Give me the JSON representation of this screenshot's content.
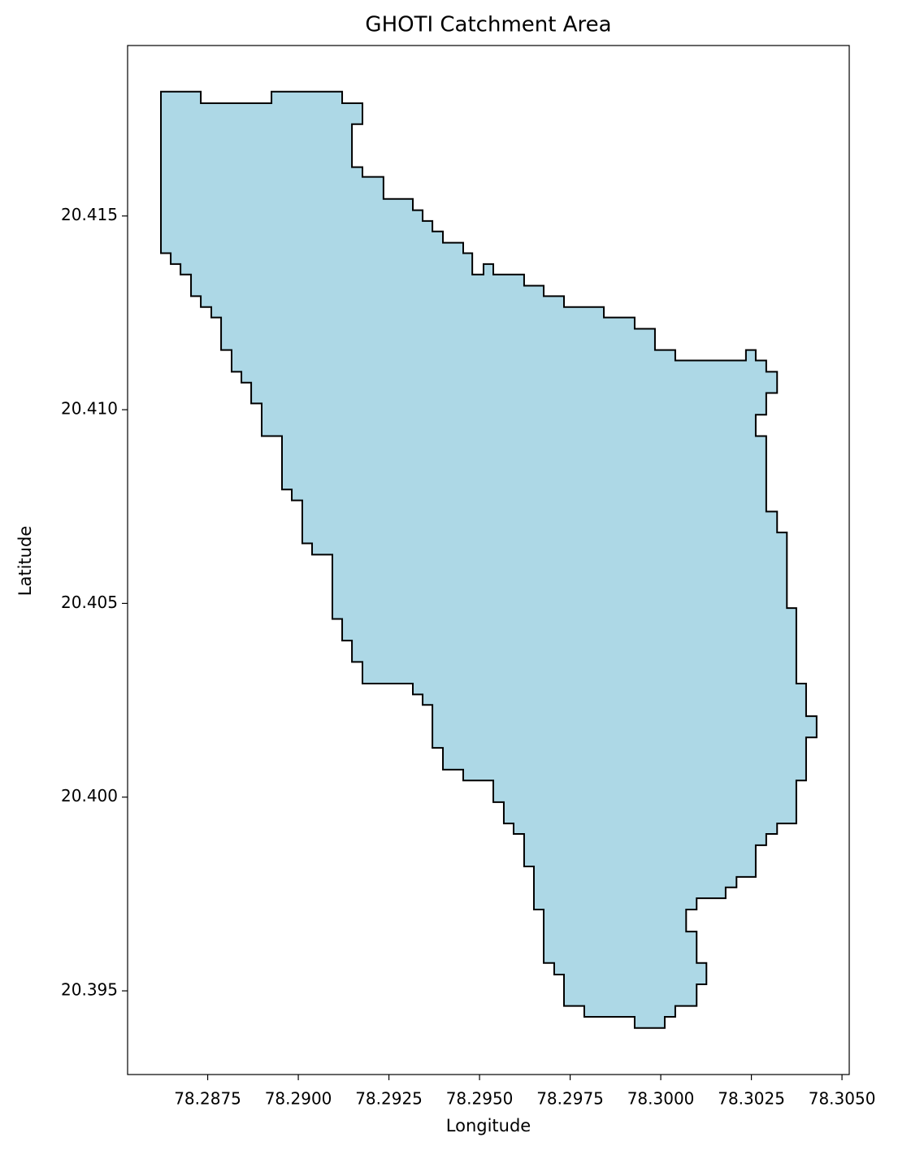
{
  "chart_data": {
    "type": "polygon",
    "title": "GHOTI Catchment Area",
    "x_label": "Longitude",
    "y_label": "Latitude",
    "fill": "#add8e6",
    "edge_color": "#000000",
    "xlim": [
      78.28529,
      78.3052
    ],
    "ylim": [
      20.39284,
      20.4194
    ],
    "xticks": [
      78.2875,
      {
        "value": 78.29,
        "label": "78.2900"
      },
      78.2925,
      {
        "value": 78.295,
        "label": "78.2950"
      },
      78.2975,
      {
        "value": 78.3,
        "label": "78.3000"
      },
      78.3025,
      {
        "value": 78.305,
        "label": "78.3050"
      }
    ],
    "yticks": [
      20.395,
      {
        "value": 20.4,
        "label": "20.400"
      },
      20.405,
      {
        "value": 20.41,
        "label": "20.410"
      },
      20.415
    ],
    "x": [
      78.28621,
      78.28731,
      78.28731,
      78.28926,
      78.28926,
      78.29121,
      78.29121,
      78.29177,
      78.29177,
      78.29148,
      78.29148,
      78.29177,
      78.29177,
      78.29235,
      78.29235,
      78.29316,
      78.29316,
      78.29343,
      78.29343,
      78.2937,
      78.2937,
      78.29399,
      78.29399,
      78.29455,
      78.29455,
      78.2948,
      78.2948,
      78.29511,
      78.29511,
      78.29538,
      78.29538,
      78.29623,
      78.29623,
      78.29677,
      78.29677,
      78.29733,
      78.29733,
      78.29843,
      78.29843,
      78.29928,
      78.29928,
      78.29984,
      78.29984,
      78.3004,
      78.3004,
      78.30235,
      78.30235,
      78.30262,
      78.30262,
      78.30291,
      78.30291,
      78.30321,
      78.30321,
      78.30291,
      78.30291,
      78.30262,
      78.30262,
      78.30291,
      78.30291,
      78.30321,
      78.30321,
      78.30348,
      78.30348,
      78.30374,
      78.30374,
      78.30401,
      78.30401,
      78.3043,
      78.3043,
      78.30401,
      78.30401,
      78.30374,
      78.30374,
      78.30321,
      78.30321,
      78.30291,
      78.30291,
      78.30262,
      78.30262,
      78.30209,
      78.30209,
      78.30179,
      78.30179,
      78.30099,
      78.30099,
      78.3007,
      78.3007,
      78.30099,
      78.30099,
      78.30126,
      78.30126,
      78.30099,
      78.30099,
      78.3004,
      78.3004,
      78.30011,
      78.30011,
      78.29928,
      78.29928,
      78.29789,
      78.29789,
      78.29733,
      78.29733,
      78.29706,
      78.29706,
      78.29677,
      78.29677,
      78.2965,
      78.2965,
      78.29623,
      78.29623,
      78.29594,
      78.29594,
      78.29567,
      78.29567,
      78.29538,
      78.29538,
      78.29455,
      78.29455,
      78.29399,
      78.29399,
      78.2937,
      78.2937,
      78.29343,
      78.29343,
      78.29316,
      78.29316,
      78.29177,
      78.29177,
      78.29148,
      78.29148,
      78.29121,
      78.29121,
      78.29094,
      78.29094,
      78.29038,
      78.29038,
      78.29011,
      78.29011,
      78.28982,
      78.28982,
      78.28955,
      78.28955,
      78.28899,
      78.28899,
      78.2887,
      78.2887,
      78.28843,
      78.28843,
      78.28816,
      78.28816,
      78.28787,
      78.28787,
      78.2876,
      78.2876,
      78.28731,
      78.28731,
      78.28704,
      78.28704,
      78.28675,
      78.28675,
      78.28648,
      78.28648,
      78.28621
    ],
    "y": [
      20.41821,
      20.41821,
      20.41791,
      20.41791,
      20.41821,
      20.41821,
      20.41791,
      20.41791,
      20.41737,
      20.41737,
      20.41626,
      20.41626,
      20.41601,
      20.41601,
      20.41544,
      20.41544,
      20.41515,
      20.41515,
      20.41487,
      20.41487,
      20.4146,
      20.4146,
      20.41431,
      20.41431,
      20.41404,
      20.41404,
      20.41349,
      20.41349,
      20.41376,
      20.41376,
      20.41349,
      20.41349,
      20.4132,
      20.4132,
      20.41293,
      20.41293,
      20.41265,
      20.41265,
      20.41238,
      20.41238,
      20.41209,
      20.41209,
      20.41154,
      20.41154,
      20.41127,
      20.41127,
      20.41154,
      20.41154,
      20.41127,
      20.41127,
      20.41098,
      20.41098,
      20.41043,
      20.41043,
      20.40987,
      20.40987,
      20.40932,
      20.40932,
      20.40737,
      20.40737,
      20.40683,
      20.40683,
      20.40488,
      20.40488,
      20.40293,
      20.40293,
      20.40209,
      20.40209,
      20.40154,
      20.40154,
      20.40043,
      20.40043,
      20.39932,
      20.39932,
      20.39905,
      20.39905,
      20.39876,
      20.39876,
      20.39794,
      20.39794,
      20.39767,
      20.39767,
      20.39739,
      20.39739,
      20.3971,
      20.3971,
      20.39653,
      20.39653,
      20.39572,
      20.39572,
      20.39517,
      20.39517,
      20.39461,
      20.39461,
      20.39433,
      20.39433,
      20.39404,
      20.39404,
      20.39433,
      20.39433,
      20.39461,
      20.39461,
      20.39542,
      20.39542,
      20.39572,
      20.39572,
      20.3971,
      20.3971,
      20.39821,
      20.39821,
      20.39905,
      20.39905,
      20.39932,
      20.39932,
      20.39987,
      20.39987,
      20.40043,
      20.40043,
      20.40071,
      20.40071,
      20.40127,
      20.40127,
      20.40238,
      20.40238,
      20.40265,
      20.40265,
      20.40293,
      20.40293,
      20.40349,
      20.40349,
      20.40404,
      20.40404,
      20.4046,
      20.4046,
      20.40626,
      20.40626,
      20.40655,
      20.40655,
      20.40766,
      20.40766,
      20.40794,
      20.40794,
      20.40932,
      20.40932,
      20.41016,
      20.41016,
      20.4107,
      20.4107,
      20.41098,
      20.41098,
      20.41154,
      20.41154,
      20.41238,
      20.41238,
      20.41265,
      20.41265,
      20.41293,
      20.41293,
      20.41349,
      20.41349,
      20.41376,
      20.41376,
      20.41404,
      20.41404
    ]
  }
}
